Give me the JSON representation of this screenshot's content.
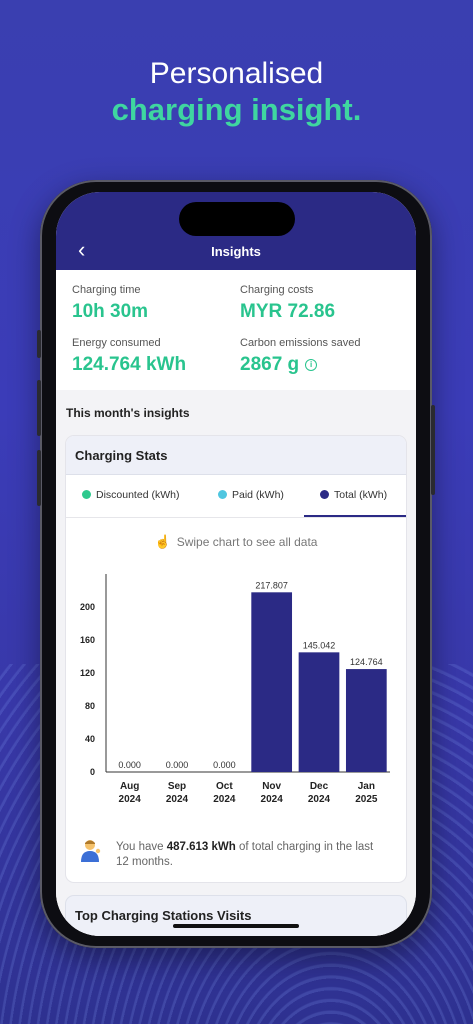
{
  "headline": {
    "line1": "Personalised",
    "line2": "charging insight."
  },
  "app": {
    "title": "Insights"
  },
  "summary": [
    {
      "label": "Charging time",
      "value": "10h 30m"
    },
    {
      "label": "Charging costs",
      "value": "MYR 72.86"
    },
    {
      "label": "Energy consumed",
      "value": "124.764 kWh"
    },
    {
      "label": "Carbon emissions saved",
      "value": "2867 g"
    }
  ],
  "section_title": "This month's insights",
  "stats_card": {
    "title": "Charging Stats",
    "tabs": [
      {
        "label": "Discounted (kWh)",
        "color": "#2fc98e"
      },
      {
        "label": "Paid (kWh)",
        "color": "#4fc6e0"
      },
      {
        "label": "Total (kWh)",
        "color": "#2b2a85"
      }
    ],
    "active_tab": "Total (kWh)",
    "swipe_hint": "Swipe chart to see all data"
  },
  "chart_data": {
    "type": "bar",
    "categories": [
      [
        "Aug",
        "2024"
      ],
      [
        "Sep",
        "2024"
      ],
      [
        "Oct",
        "2024"
      ],
      [
        "Nov",
        "2024"
      ],
      [
        "Dec",
        "2024"
      ],
      [
        "Jan",
        "2025"
      ]
    ],
    "values": [
      0,
      0,
      0,
      217.807,
      145.042,
      124.764
    ],
    "value_labels": [
      "0.000",
      "0.000",
      "0.000",
      "217.807",
      "145.042",
      "124.764"
    ],
    "yticks": [
      0,
      40,
      80,
      120,
      160,
      200
    ],
    "ylim": [
      0,
      240
    ],
    "bar_color": "#2b2a85",
    "grid": false
  },
  "note": {
    "prefix": "You have ",
    "highlight": "487.613 kWh",
    "suffix": " of total charging in the last 12 months."
  },
  "next_card_title": "Top Charging Stations Visits"
}
